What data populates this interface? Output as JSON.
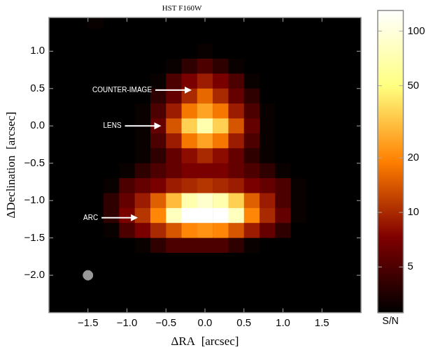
{
  "chart_data": {
    "type": "heatmap",
    "title": "HST F160W",
    "x_label": "ΔRA  [arcsec]",
    "y_label": "ΔDeclination  [arcsec]",
    "xlim": [
      -2.0,
      2.0
    ],
    "ylim": [
      -2.5,
      1.45
    ],
    "xticks": [
      {
        "value": -1.5,
        "label": "−1.5"
      },
      {
        "value": -1.0,
        "label": "−1.0"
      },
      {
        "value": -0.5,
        "label": "−0.5"
      },
      {
        "value": 0,
        "label": "0.0"
      },
      0.5,
      {
        "value": 1.0,
        "label": "1.0"
      },
      1.5
    ],
    "yticks": [
      {
        "value": -2.0,
        "label": "−2.0"
      },
      {
        "value": -1.5,
        "label": "−1.5"
      },
      {
        "value": -1.0,
        "label": "−1.0"
      },
      {
        "value": -0.5,
        "label": "−0.5"
      },
      {
        "value": 0,
        "label": "0.0"
      },
      0.5,
      {
        "value": 1.0,
        "label": "1.0"
      }
    ],
    "grid": false,
    "x": [
      -2.0,
      -1.8,
      -1.6,
      -1.4,
      -1.2,
      -1.0,
      -0.8,
      -0.6,
      -0.4,
      -0.2,
      0.0,
      0.2,
      0.4,
      0.6,
      0.8,
      1.0,
      1.2,
      1.4,
      1.6,
      1.8,
      2.0
    ],
    "y": [
      1.4,
      1.2,
      1.0,
      0.8,
      0.6,
      0.4,
      0.2,
      0.0,
      -0.2,
      -0.4,
      -0.6,
      -0.8,
      -1.0,
      -1.2,
      -1.4,
      -1.6,
      -1.8,
      -2.0,
      -2.2,
      -2.4
    ],
    "cells": [
      [
        2,
        2,
        2,
        3,
        2,
        2,
        2,
        2,
        2,
        2,
        2,
        2,
        2,
        2,
        2,
        2,
        2,
        2,
        2,
        2,
        2
      ],
      [
        2,
        2,
        2,
        2,
        2,
        2,
        2,
        2,
        2,
        2,
        2,
        2,
        2,
        2,
        2,
        2,
        2,
        2,
        2,
        2,
        2
      ],
      [
        2,
        2,
        2,
        2,
        2,
        2,
        2,
        2,
        2,
        2,
        3,
        2,
        2,
        2,
        2,
        2,
        2,
        2,
        2,
        2,
        2
      ],
      [
        2,
        2,
        2,
        2,
        2,
        2,
        2,
        2,
        3,
        4,
        5,
        4,
        3,
        2,
        2,
        2,
        2,
        2,
        2,
        2,
        2
      ],
      [
        2,
        2,
        2,
        2,
        2,
        2,
        2,
        3,
        5,
        7,
        9,
        7,
        5,
        3,
        2,
        2,
        2,
        2,
        2,
        2,
        2
      ],
      [
        2,
        2,
        2,
        2,
        2,
        2,
        2,
        4,
        6,
        10,
        16,
        10,
        6,
        4,
        2,
        2,
        2,
        2,
        2,
        2,
        2
      ],
      [
        2,
        2,
        2,
        2,
        2,
        2,
        3,
        5,
        9,
        18,
        25,
        18,
        9,
        5,
        3,
        2,
        2,
        2,
        2,
        2,
        2
      ],
      [
        2,
        2,
        2,
        2,
        2,
        2,
        3,
        6,
        14,
        35,
        70,
        35,
        14,
        6,
        3,
        2,
        2,
        2,
        2,
        2,
        2
      ],
      [
        2,
        2,
        2,
        2,
        2,
        2,
        3,
        5,
        9,
        18,
        25,
        18,
        9,
        5,
        3,
        2,
        2,
        2,
        2,
        2,
        2
      ],
      [
        2,
        2,
        2,
        2,
        2,
        2,
        3,
        4,
        6,
        8,
        10,
        8,
        6,
        4,
        3,
        2,
        2,
        2,
        2,
        2,
        2
      ],
      [
        2,
        2,
        2,
        2,
        2,
        3,
        4,
        5,
        6,
        7,
        7,
        7,
        6,
        5,
        4,
        3,
        2,
        2,
        2,
        2,
        2
      ],
      [
        2,
        2,
        2,
        2,
        3,
        5,
        6,
        7,
        9,
        10,
        11,
        10,
        9,
        7,
        6,
        5,
        3,
        2,
        2,
        2,
        2
      ],
      [
        2,
        2,
        2,
        2,
        4,
        6,
        9,
        15,
        30,
        70,
        90,
        70,
        35,
        15,
        9,
        5,
        3,
        2,
        2,
        2,
        2
      ],
      [
        2,
        2,
        2,
        2,
        4,
        7,
        11,
        20,
        80,
        140,
        150,
        140,
        80,
        20,
        10,
        6,
        3,
        2,
        2,
        2,
        2
      ],
      [
        2,
        2,
        2,
        2,
        3,
        5,
        7,
        10,
        14,
        20,
        22,
        20,
        14,
        9,
        6,
        4,
        2,
        2,
        2,
        2,
        2
      ],
      [
        2,
        2,
        2,
        2,
        2,
        2,
        3,
        4,
        5,
        5,
        5,
        5,
        4,
        3,
        2,
        2,
        2,
        2,
        2,
        2,
        2
      ],
      [
        2,
        2,
        2,
        2,
        2,
        2,
        2,
        2,
        2,
        2,
        2,
        2,
        2,
        2,
        2,
        2,
        2,
        2,
        2,
        2,
        2
      ],
      [
        2,
        2,
        2,
        2,
        2,
        2,
        2,
        2,
        2,
        2,
        2,
        2,
        2,
        2,
        2,
        2,
        2,
        2,
        2,
        2,
        2
      ],
      [
        2,
        2,
        2,
        2,
        2,
        2,
        2,
        2,
        2,
        2,
        2,
        2,
        2,
        2,
        2,
        2,
        2,
        2,
        2,
        2,
        2
      ],
      [
        2,
        2,
        2,
        2,
        2,
        2,
        2,
        2,
        2,
        2,
        2,
        2,
        2,
        2,
        2,
        2,
        2,
        2,
        2,
        2,
        2
      ]
    ],
    "colorbar": {
      "label": "S/N",
      "range": [
        2.8,
        130
      ],
      "ticks": [
        5,
        10,
        20,
        50,
        100
      ],
      "log": true
    },
    "annotations": [
      {
        "text": "COUNTER-IMAGE",
        "x": -0.17,
        "y": 0.48
      },
      {
        "text": "LENS",
        "x": -0.56,
        "y": 0.0
      },
      {
        "text": "ARC",
        "x": -0.86,
        "y": -1.23
      }
    ],
    "markers": [
      {
        "x": -1.5,
        "y": -2.0,
        "color": "#999999",
        "marker": "circle"
      }
    ]
  }
}
